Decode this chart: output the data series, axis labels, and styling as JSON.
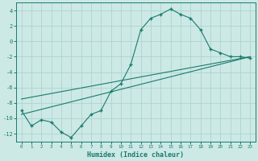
{
  "xlabel": "Humidex (Indice chaleur)",
  "xlim": [
    -0.5,
    23.5
  ],
  "ylim": [
    -13,
    5
  ],
  "xticks": [
    0,
    1,
    2,
    3,
    4,
    5,
    6,
    7,
    8,
    9,
    10,
    11,
    12,
    13,
    14,
    15,
    16,
    17,
    18,
    19,
    20,
    21,
    22,
    23
  ],
  "yticks": [
    -12,
    -10,
    -8,
    -6,
    -4,
    -2,
    0,
    2,
    4
  ],
  "bg_color": "#cce9e5",
  "line_color": "#1a7a6e",
  "grid_color": "#aed4cf",
  "curve1_x": [
    0,
    1,
    2,
    3,
    4,
    5,
    6,
    7,
    8,
    9,
    10,
    11,
    12,
    13,
    14,
    15,
    16,
    17,
    18,
    19,
    20,
    21,
    22,
    23
  ],
  "curve1_y": [
    -9.0,
    -11.0,
    -10.2,
    -10.5,
    -11.8,
    -12.5,
    -11.0,
    -9.5,
    -9.0,
    -6.5,
    -5.5,
    -3.0,
    1.5,
    3.0,
    3.5,
    4.2,
    3.5,
    3.0,
    1.5,
    -1.0,
    -1.5,
    -2.0,
    -2.0,
    -2.2
  ],
  "line2_x": [
    0,
    23
  ],
  "line2_y": [
    -7.5,
    -2.0
  ],
  "line3_x": [
    0,
    23
  ],
  "line3_y": [
    -9.5,
    -2.0
  ]
}
